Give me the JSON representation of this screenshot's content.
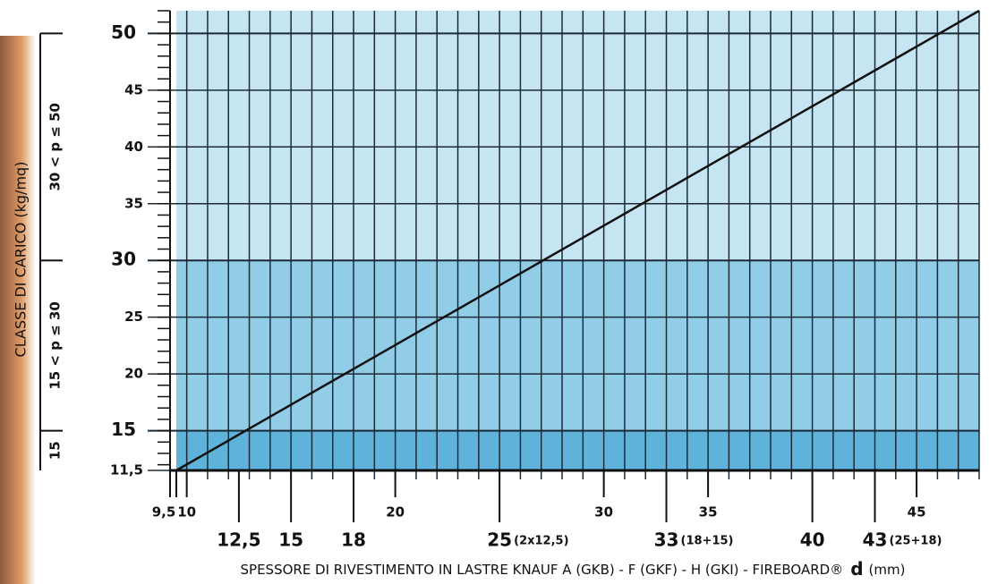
{
  "chart_data": {
    "type": "line",
    "y_title": "CLASSE DI CARICO (kg/mq)",
    "x_title": "SPESSORE DI RIVESTIMENTO IN LASTRE KNAUF A (GKB) - F (GKF) - H (GKI) - FIREBOARD®",
    "x_symbol": "d",
    "x_unit": "(mm)",
    "xlim": [
      9.5,
      48
    ],
    "ylim": [
      11.5,
      52
    ],
    "xticks": [
      {
        "value": 9.5,
        "label": "9,5"
      },
      10,
      20,
      30,
      35,
      45
    ],
    "xticks_large": [
      {
        "value": 12.5,
        "label": "12,5"
      },
      {
        "value": 15,
        "label": "15"
      },
      {
        "value": 18,
        "label": "18"
      },
      {
        "value": 25,
        "label": "25",
        "note": "(2x12,5)"
      },
      {
        "value": 33,
        "label": "33",
        "note": "(18+15)"
      },
      {
        "value": 40,
        "label": "40"
      },
      {
        "value": 43,
        "label": "43",
        "note": "(25+18)"
      }
    ],
    "yticks": [
      {
        "value": 11.5,
        "label": "11,5"
      },
      15,
      20,
      25,
      30,
      35,
      40,
      45,
      50
    ],
    "bands": [
      {
        "from": 11.5,
        "to": 15,
        "label": "15",
        "color": "#5fb3da"
      },
      {
        "from": 15,
        "to": 30,
        "label": "15 < p ≤ 30",
        "color": "#92cde8"
      },
      {
        "from": 30,
        "to": 50,
        "label": "30 < p ≤ 50",
        "color": "#c6e5f3"
      }
    ],
    "grid": true,
    "series": [
      {
        "x": [
          9.5,
          48
        ],
        "values": [
          11.5,
          52
        ],
        "color": "#111111"
      }
    ]
  }
}
